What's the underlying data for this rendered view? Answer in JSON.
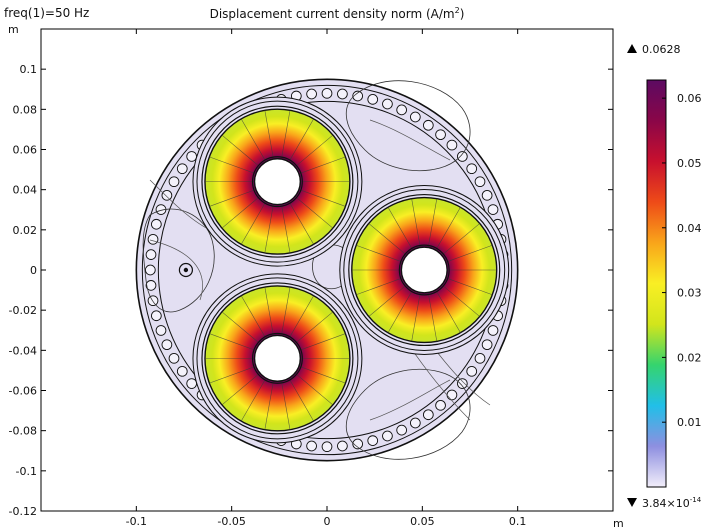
{
  "header": {
    "parameter_label": "freq(1)=50 Hz",
    "title_main": "Displacement current density norm (A/m",
    "title_sup": "2",
    "title_close": ")"
  },
  "chart_data": {
    "type": "heatmap",
    "title": "Displacement current density norm (A/m²)",
    "xlabel": "m",
    "ylabel": "m",
    "xlim": [
      -0.15,
      0.15
    ],
    "ylim": [
      -0.12,
      0.12
    ],
    "x_ticks": [
      -0.1,
      -0.05,
      0,
      0.05,
      0.1
    ],
    "x_tick_labels": [
      "-0.1",
      "-0.05",
      "0",
      "0.05",
      "0.1"
    ],
    "y_ticks": [
      0.1,
      0.08,
      0.06,
      0.04,
      0.02,
      0,
      -0.02,
      -0.04,
      -0.06,
      -0.08,
      -0.1,
      -0.12
    ],
    "y_tick_labels": [
      "0.1",
      "0.08",
      "0.06",
      "0.04",
      "0.02",
      "0",
      "-0.02",
      "-0.04",
      "-0.06",
      "-0.08",
      "-0.1",
      "-0.12"
    ],
    "cable_outer_radius": 0.1,
    "conductors": [
      {
        "cx": -0.026,
        "cy": 0.044,
        "r_inner": 0.012,
        "r_outer": 0.038
      },
      {
        "cx": -0.026,
        "cy": -0.044,
        "r_inner": 0.012,
        "r_outer": 0.038
      },
      {
        "cx": 0.051,
        "cy": 0.0,
        "r_inner": 0.012,
        "r_outer": 0.038
      }
    ],
    "field_description": "maximum near inner insulation radius, decreasing outward",
    "colorbar": {
      "max_label": "0.0628",
      "min_label_mantissa": "3.84×10",
      "min_label_exp": "-14",
      "max": 0.0628,
      "min": 3.84e-14,
      "ticks": [
        0.06,
        0.05,
        0.04,
        0.03,
        0.02,
        0.01
      ],
      "tick_labels": [
        "0.06",
        "0.05",
        "0.04",
        "0.03",
        "0.02",
        "0.01"
      ],
      "colormap": [
        "#f2eefa",
        "#8e8fe0",
        "#21bfe8",
        "#35d46e",
        "#d2e51c",
        "#f9ef24",
        "#f9a51a",
        "#ee4b18",
        "#c8102e",
        "#8a0648",
        "#5c0a62"
      ]
    },
    "grid": false,
    "colors": {
      "domain_fill": "#e3dff2",
      "outline": "#111111"
    }
  }
}
